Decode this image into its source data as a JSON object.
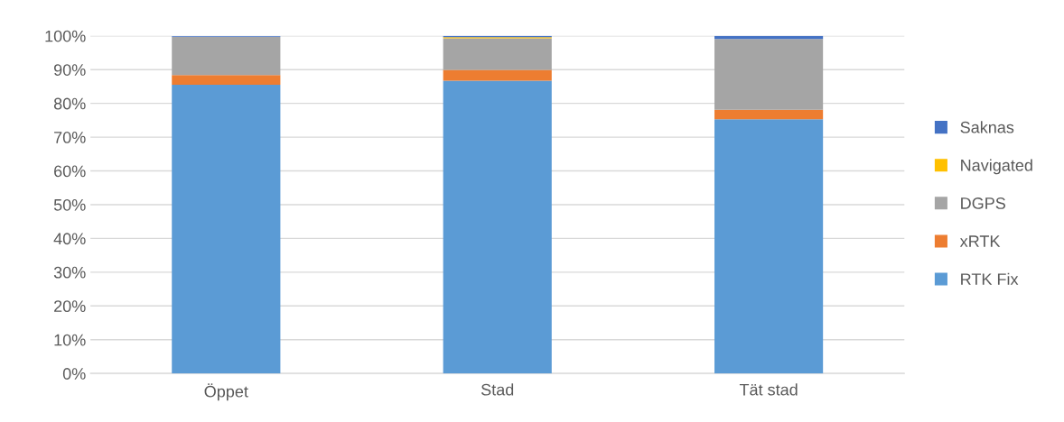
{
  "chart_data": {
    "type": "bar",
    "stacked": true,
    "categories": [
      "Öppet",
      "Stad",
      "Tät stad"
    ],
    "series": [
      {
        "name": "RTK Fix",
        "color": "#5b9bd5",
        "values": [
          85.5,
          86.7,
          75.3
        ]
      },
      {
        "name": "xRTK",
        "color": "#ed7d31",
        "values": [
          2.9,
          3.2,
          2.8
        ]
      },
      {
        "name": "DGPS",
        "color": "#a5a5a5",
        "values": [
          11.3,
          9.4,
          21.0
        ]
      },
      {
        "name": "Navigated",
        "color": "#ffc000",
        "values": [
          null,
          0.3,
          0.0
        ]
      },
      {
        "name": "Saknas",
        "color": "#4472c4",
        "values": [
          0.2,
          0.4,
          0.9
        ]
      }
    ],
    "ylim": [
      0,
      100
    ],
    "yticks": [
      {
        "value": 0,
        "label": "0%"
      },
      {
        "value": 10,
        "label": "10%"
      },
      {
        "value": 20,
        "label": "20%"
      },
      {
        "value": 30,
        "label": "30%"
      },
      {
        "value": 40,
        "label": "40%"
      },
      {
        "value": 50,
        "label": "50%"
      },
      {
        "value": 60,
        "label": "60%"
      },
      {
        "value": 70,
        "label": "70%"
      },
      {
        "value": 80,
        "label": "80%"
      },
      {
        "value": 90,
        "label": "90%"
      },
      {
        "value": 100,
        "label": "100%"
      }
    ],
    "grid": "y",
    "legend": "right"
  }
}
